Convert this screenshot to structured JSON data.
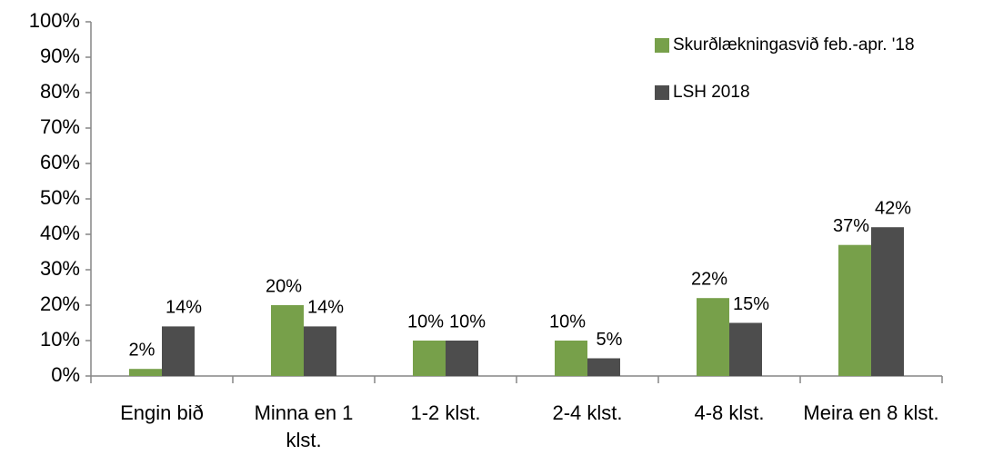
{
  "chart_data": {
    "type": "bar",
    "categories": [
      "Engin bið",
      "Minna en 1 klst.",
      "1-2 klst.",
      "2-4 klst.",
      "4-8 klst.",
      "Meira en 8 klst."
    ],
    "series": [
      {
        "name": "Skurðlækningasvið feb.-apr. '18",
        "color": "#77a04a",
        "values": [
          2,
          20,
          10,
          10,
          22,
          37
        ],
        "value_labels": [
          "2%",
          "20%",
          "10%",
          "10%",
          "22%",
          "37%"
        ]
      },
      {
        "name": "LSH 2018",
        "color": "#4d4d4d",
        "values": [
          14,
          14,
          10,
          5,
          15,
          42
        ],
        "value_labels": [
          "14%",
          "14%",
          "10%",
          "5%",
          "15%",
          "42%"
        ]
      }
    ],
    "ylim": [
      0,
      100
    ],
    "yticks": [
      {
        "value": 0,
        "label": "0%"
      },
      {
        "value": 10,
        "label": "10%"
      },
      {
        "value": 20,
        "label": "20%"
      },
      {
        "value": 30,
        "label": "30%"
      },
      {
        "value": 40,
        "label": "40%"
      },
      {
        "value": 50,
        "label": "50%"
      },
      {
        "value": 60,
        "label": "60%"
      },
      {
        "value": 70,
        "label": "70%"
      },
      {
        "value": 80,
        "label": "80%"
      },
      {
        "value": 90,
        "label": "90%"
      },
      {
        "value": 100,
        "label": "100%"
      }
    ],
    "grid": false,
    "legend": "top-right"
  }
}
